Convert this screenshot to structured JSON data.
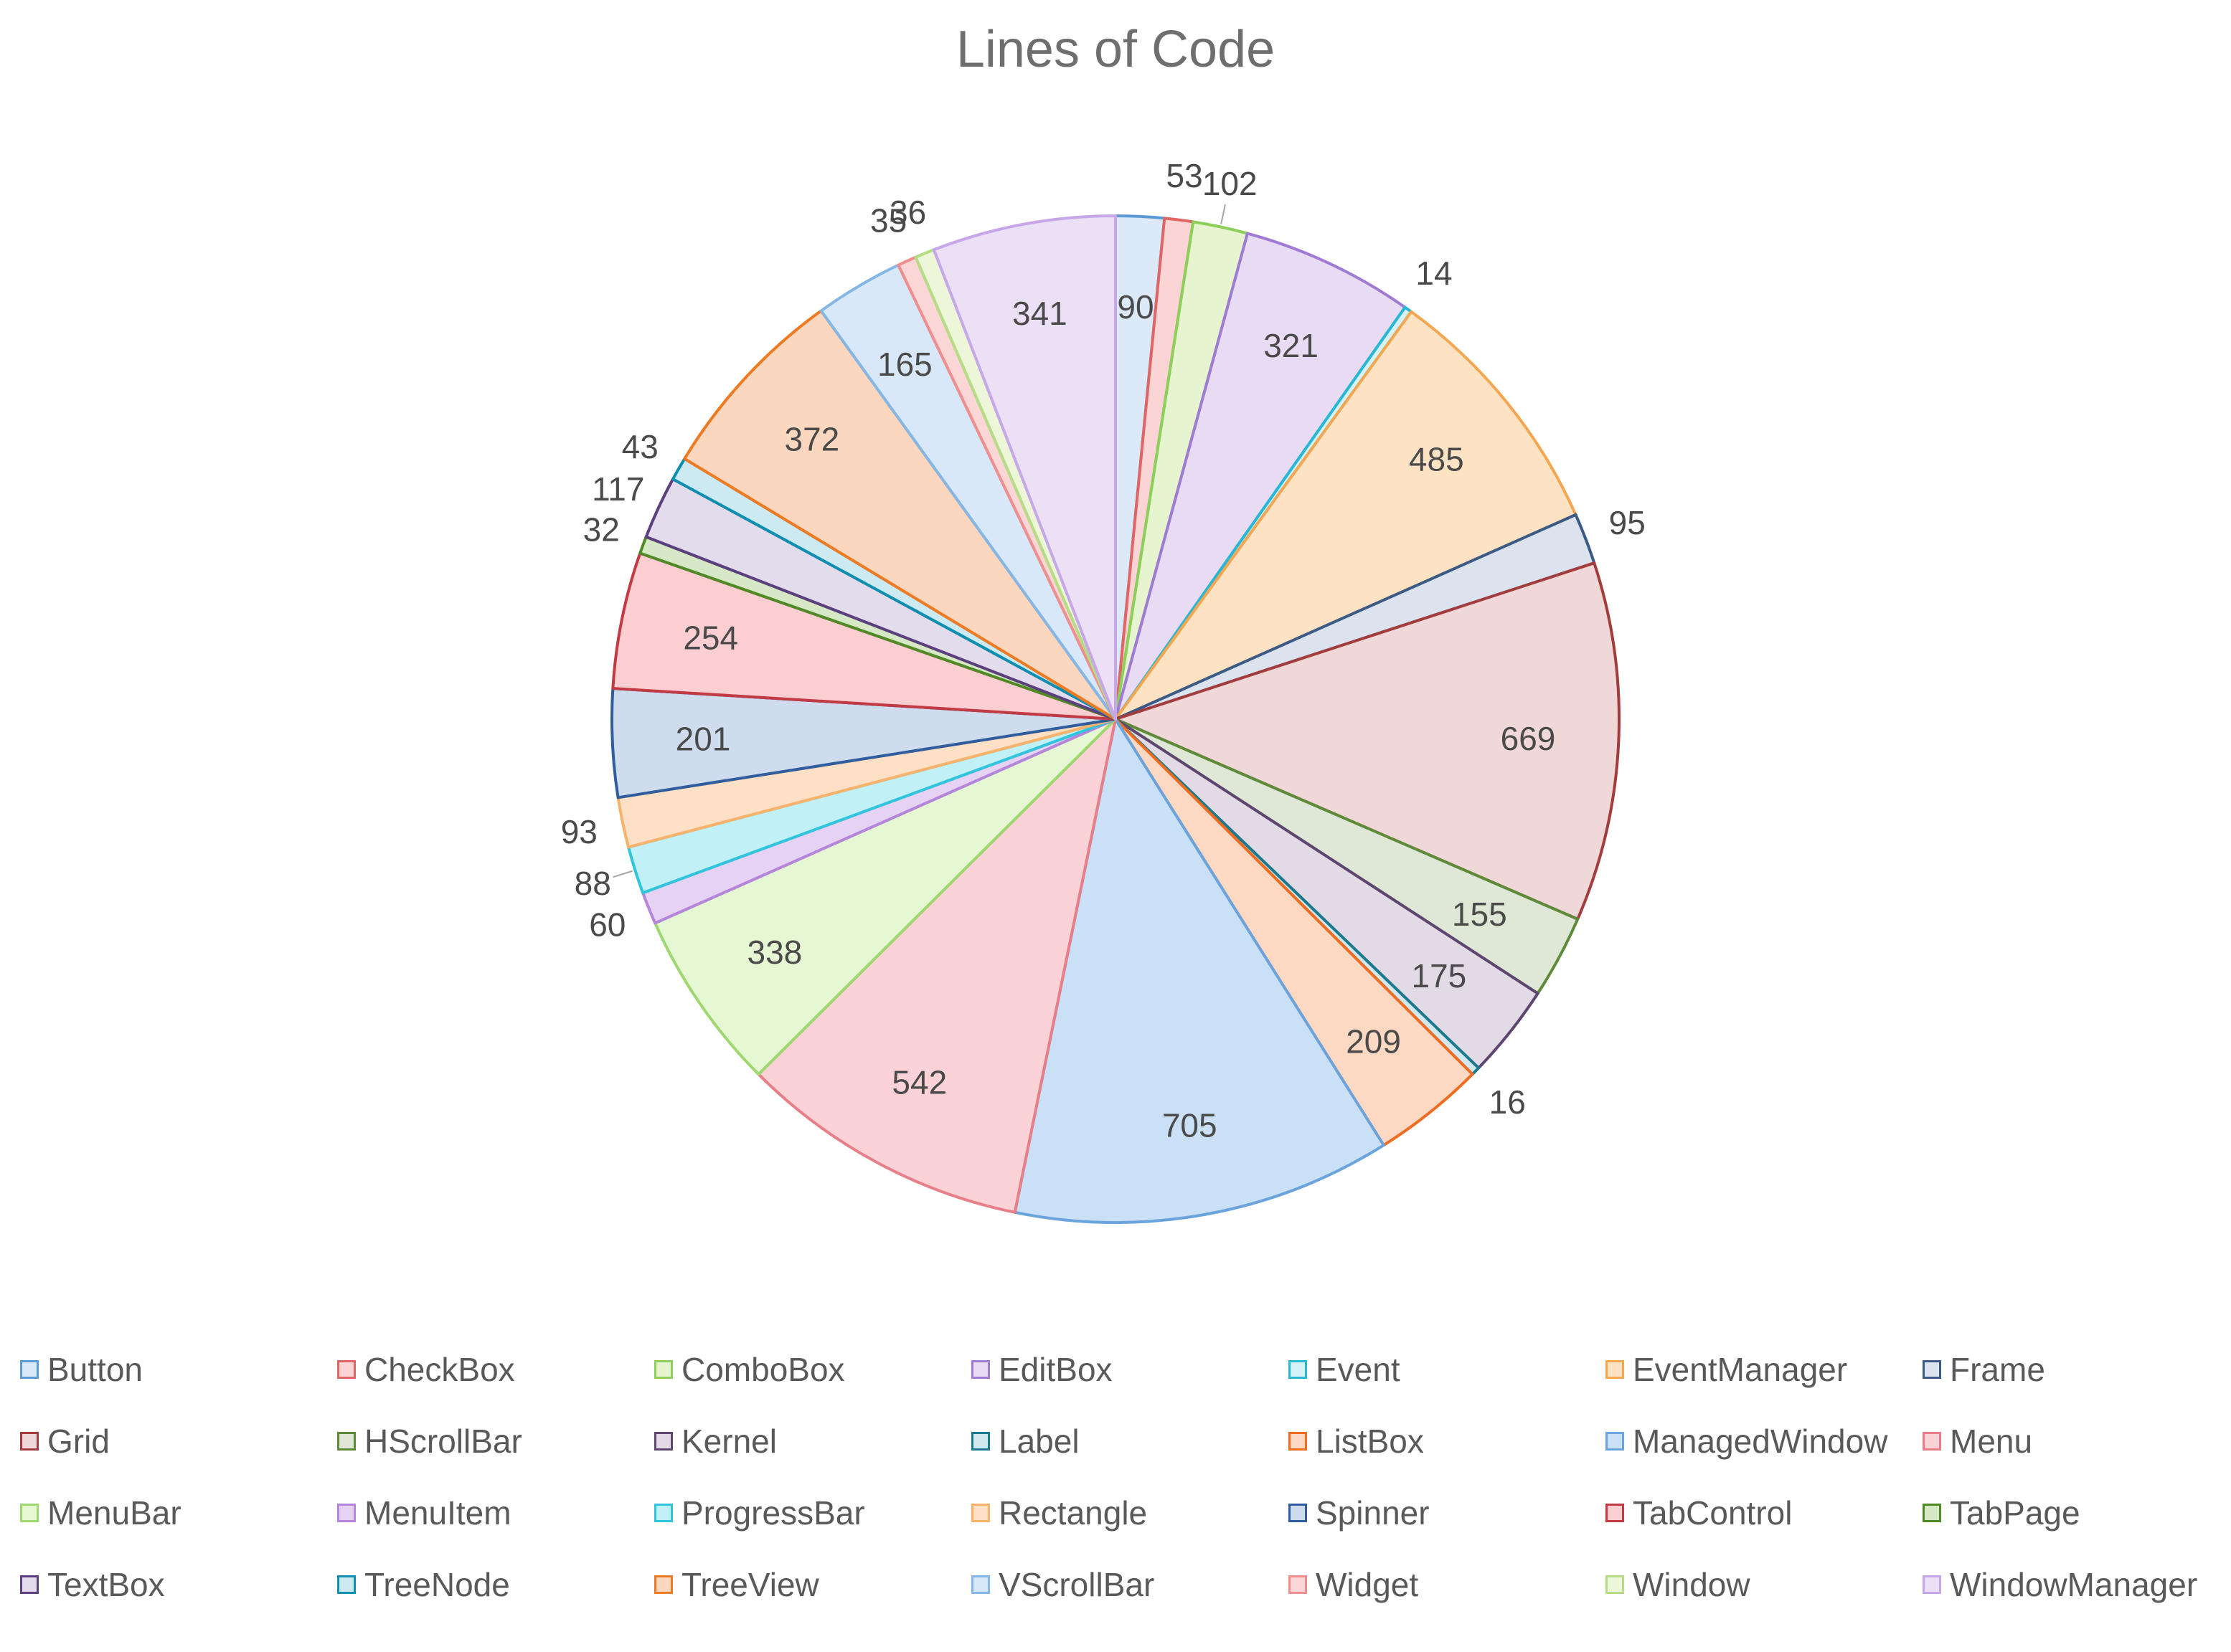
{
  "chart_data": {
    "type": "pie",
    "title": "Lines of Code",
    "legend_position": "bottom",
    "slices": [
      {
        "name": "Button",
        "value": 90,
        "fill": "#dbe9f8",
        "stroke": "#5b9bd5"
      },
      {
        "name": "CheckBox",
        "value": 53,
        "fill": "#fbd5d5",
        "stroke": "#e06666"
      },
      {
        "name": "ComboBox",
        "value": 102,
        "fill": "#e6f5d0",
        "stroke": "#8ccf5a"
      },
      {
        "name": "EditBox",
        "value": 321,
        "fill": "#e8dcf5",
        "stroke": "#a07bd4"
      },
      {
        "name": "Event",
        "value": 14,
        "fill": "#d4f2f8",
        "stroke": "#28b8d4"
      },
      {
        "name": "EventManager",
        "value": 485,
        "fill": "#fde3c4",
        "stroke": "#f4a650"
      },
      {
        "name": "Frame",
        "value": 95,
        "fill": "#dde3ee",
        "stroke": "#3c5a86"
      },
      {
        "name": "Grid",
        "value": 669,
        "fill": "#f0d8d8",
        "stroke": "#a33c3c"
      },
      {
        "name": "HScrollBar",
        "value": 155,
        "fill": "#dfe8d6",
        "stroke": "#5e8a3a"
      },
      {
        "name": "Kernel",
        "value": 175,
        "fill": "#e2dbe6",
        "stroke": "#5e4670"
      },
      {
        "name": "Label",
        "value": 16,
        "fill": "#d0e8ee",
        "stroke": "#1c7a8f"
      },
      {
        "name": "ListBox",
        "value": 209,
        "fill": "#fdd9c4",
        "stroke": "#ef6c20"
      },
      {
        "name": "ManagedWindow",
        "value": 705,
        "fill": "#c9e0f7",
        "stroke": "#6ba3dc"
      },
      {
        "name": "Menu",
        "value": 542,
        "fill": "#fbd3d6",
        "stroke": "#e87f88"
      },
      {
        "name": "MenuBar",
        "value": 338,
        "fill": "#e6f7d3",
        "stroke": "#9fd870"
      },
      {
        "name": "MenuItem",
        "value": 60,
        "fill": "#e6d3f3",
        "stroke": "#b585dc"
      },
      {
        "name": "ProgressBar",
        "value": 88,
        "fill": "#c2f0f7",
        "stroke": "#31c5dd"
      },
      {
        "name": "Rectangle",
        "value": 93,
        "fill": "#fde0c5",
        "stroke": "#f7b26b"
      },
      {
        "name": "Spinner",
        "value": 201,
        "fill": "#cfdcee",
        "stroke": "#2f5d9e"
      },
      {
        "name": "TabControl",
        "value": 254,
        "fill": "#fbcfd1",
        "stroke": "#c23a44"
      },
      {
        "name": "TabPage",
        "value": 32,
        "fill": "#d6e8c6",
        "stroke": "#4f8a26"
      },
      {
        "name": "TextBox",
        "value": 117,
        "fill": "#e3dcec",
        "stroke": "#5b3f7e"
      },
      {
        "name": "TreeNode",
        "value": 43,
        "fill": "#cdeaf2",
        "stroke": "#0f8fb0"
      },
      {
        "name": "TreeView",
        "value": 372,
        "fill": "#fcd7bf",
        "stroke": "#f07a22"
      },
      {
        "name": "VScrollBar",
        "value": 165,
        "fill": "#d8e8f8",
        "stroke": "#84b6e6"
      },
      {
        "name": "Widget",
        "value": 35,
        "fill": "#fbd6d6",
        "stroke": "#f08e8e"
      },
      {
        "name": "Window",
        "value": 36,
        "fill": "#edf6d9",
        "stroke": "#b4dd86"
      },
      {
        "name": "WindowManager",
        "value": 341,
        "fill": "#ece0f7",
        "stroke": "#c7a6ea"
      }
    ]
  }
}
